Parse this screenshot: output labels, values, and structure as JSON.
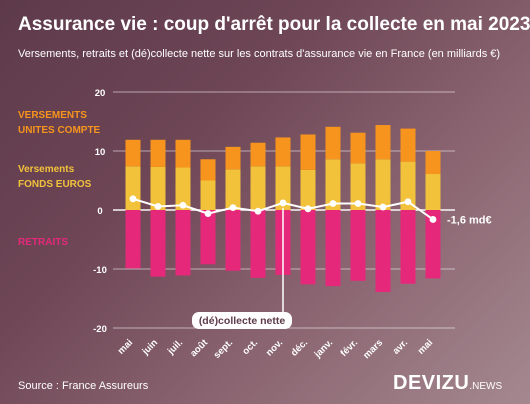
{
  "header": {
    "title": "Assurance vie : coup d'arrêt pour la collecte en mai 2023",
    "subtitle": "Versements, retraits et (dé)collecte nette sur les contrats d'assurance vie en France (en milliards €)"
  },
  "legend": {
    "uc_line1": "VERSEMENTS",
    "uc_line2": "UNITES COMPTE",
    "fe_line1": "Versements",
    "fe_line2": "FONDS EUROS",
    "retraits": "RETRAITS"
  },
  "annotations": {
    "net_label": "(dé)collecte nette",
    "last_value": "-1,6 md€"
  },
  "footer": {
    "source": "Source : France Assureurs",
    "brand": "DEVIZU",
    "brand_suffix": ".NEWS"
  },
  "colors": {
    "uc": "#f7941d",
    "fonds_euros": "#f2c23b",
    "retraits": "#e6287a",
    "net_line": "#ffffff",
    "gridline": "#ffffff"
  },
  "chart_data": {
    "type": "bar",
    "stacked": true,
    "categories": [
      "mai",
      "juin",
      "juil.",
      "août",
      "sept.",
      "oct.",
      "nov.",
      "déc.",
      "janv.",
      "févr.",
      "mars",
      "avr.",
      "mai"
    ],
    "series": [
      {
        "name": "Versements fonds euros",
        "values": [
          7.4,
          7.3,
          7.2,
          5.0,
          6.9,
          7.4,
          7.4,
          6.8,
          8.6,
          7.9,
          8.6,
          8.2,
          6.1
        ]
      },
      {
        "name": "Versements unités de compte",
        "values": [
          4.5,
          4.6,
          4.7,
          3.6,
          3.8,
          4.0,
          4.9,
          6.0,
          5.5,
          5.2,
          5.8,
          5.6,
          3.9
        ]
      },
      {
        "name": "Retraits",
        "values": [
          -9.9,
          -11.3,
          -11.1,
          -9.2,
          -10.3,
          -11.5,
          -11.0,
          -12.6,
          -12.9,
          -12.0,
          -13.9,
          -12.5,
          -11.6
        ]
      },
      {
        "name": "(dé)collecte nette",
        "type": "line",
        "values": [
          1.9,
          0.6,
          0.8,
          -0.6,
          0.4,
          -0.2,
          1.2,
          0.2,
          1.1,
          1.1,
          0.5,
          1.4,
          -1.6
        ]
      }
    ],
    "y_ticks": [
      20,
      10,
      0,
      -10,
      -20
    ],
    "ylim": [
      -20,
      20
    ],
    "grid": true
  }
}
